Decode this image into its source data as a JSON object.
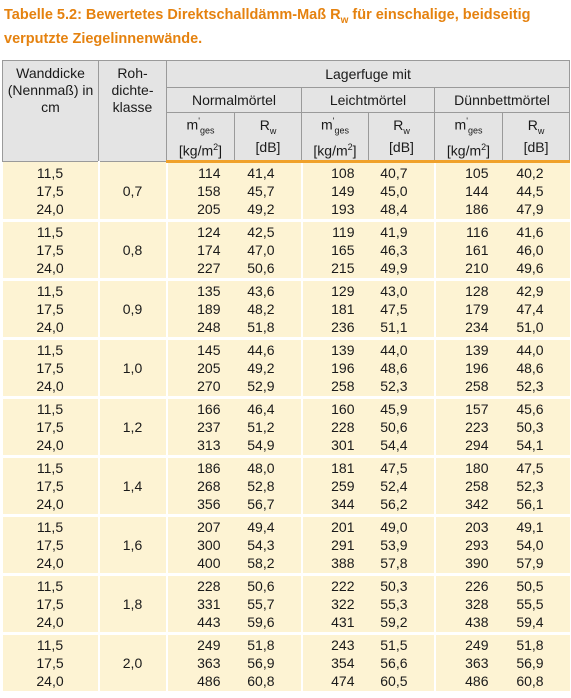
{
  "title": {
    "prefix": "Tabelle 5.2: Bewertetes Direktschalldämm-Maß R",
    "sub": "w",
    "suffix": "für einschalige, beidseitig verputzte Ziegelinnenwände."
  },
  "table": {
    "header": {
      "thickness": "Wanddicke (Nennmaß) in cm",
      "class": "Roh-dichte-klasse",
      "group": "Lagerfuge mit",
      "mortars": [
        "Normalmörtel",
        "Leichtmörtel",
        "Dünnbettmörtel"
      ],
      "m_label": {
        "base": "m",
        "sup": "'",
        "sub": "ges"
      },
      "m_unit": {
        "base": "[kg/m",
        "sup": "2",
        "close": "]"
      },
      "rw_label": {
        "base": "R",
        "sub": "w"
      },
      "rw_unit": "[dB]"
    },
    "rows": [
      {
        "thickness": [
          "11,5",
          "17,5",
          "24,0"
        ],
        "class": "0,7",
        "values": [
          [
            "114",
            "41,4",
            "108",
            "40,7",
            "105",
            "40,2"
          ],
          [
            "158",
            "45,7",
            "149",
            "45,0",
            "144",
            "44,5"
          ],
          [
            "205",
            "49,2",
            "193",
            "48,4",
            "186",
            "47,9"
          ]
        ]
      },
      {
        "thickness": [
          "11,5",
          "17,5",
          "24,0"
        ],
        "class": "0,8",
        "values": [
          [
            "124",
            "42,5",
            "119",
            "41,9",
            "116",
            "41,6"
          ],
          [
            "174",
            "47,0",
            "165",
            "46,3",
            "161",
            "46,0"
          ],
          [
            "227",
            "50,6",
            "215",
            "49,9",
            "210",
            "49,6"
          ]
        ]
      },
      {
        "thickness": [
          "11,5",
          "17,5",
          "24,0"
        ],
        "class": "0,9",
        "values": [
          [
            "135",
            "43,6",
            "129",
            "43,0",
            "128",
            "42,9"
          ],
          [
            "189",
            "48,2",
            "181",
            "47,5",
            "179",
            "47,4"
          ],
          [
            "248",
            "51,8",
            "236",
            "51,1",
            "234",
            "51,0"
          ]
        ]
      },
      {
        "thickness": [
          "11,5",
          "17,5",
          "24,0"
        ],
        "class": "1,0",
        "values": [
          [
            "145",
            "44,6",
            "139",
            "44,0",
            "139",
            "44,0"
          ],
          [
            "205",
            "49,2",
            "196",
            "48,6",
            "196",
            "48,6"
          ],
          [
            "270",
            "52,9",
            "258",
            "52,3",
            "258",
            "52,3"
          ]
        ]
      },
      {
        "thickness": [
          "11,5",
          "17,5",
          "24,0"
        ],
        "class": "1,2",
        "values": [
          [
            "166",
            "46,4",
            "160",
            "45,9",
            "157",
            "45,6"
          ],
          [
            "237",
            "51,2",
            "228",
            "50,6",
            "223",
            "50,3"
          ],
          [
            "313",
            "54,9",
            "301",
            "54,4",
            "294",
            "54,1"
          ]
        ]
      },
      {
        "thickness": [
          "11,5",
          "17,5",
          "24,0"
        ],
        "class": "1,4",
        "values": [
          [
            "186",
            "48,0",
            "181",
            "47,5",
            "180",
            "47,5"
          ],
          [
            "268",
            "52,8",
            "259",
            "52,4",
            "258",
            "52,3"
          ],
          [
            "356",
            "56,7",
            "344",
            "56,2",
            "342",
            "56,1"
          ]
        ]
      },
      {
        "thickness": [
          "11,5",
          "17,5",
          "24,0"
        ],
        "class": "1,6",
        "values": [
          [
            "207",
            "49,4",
            "201",
            "49,0",
            "203",
            "49,1"
          ],
          [
            "300",
            "54,3",
            "291",
            "53,9",
            "293",
            "54,0"
          ],
          [
            "400",
            "58,2",
            "388",
            "57,8",
            "390",
            "57,9"
          ]
        ]
      },
      {
        "thickness": [
          "11,5",
          "17,5",
          "24,0"
        ],
        "class": "1,8",
        "values": [
          [
            "228",
            "50,6",
            "222",
            "50,3",
            "226",
            "50,5"
          ],
          [
            "331",
            "55,7",
            "322",
            "55,3",
            "328",
            "55,5"
          ],
          [
            "443",
            "59,6",
            "431",
            "59,2",
            "438",
            "59,4"
          ]
        ]
      },
      {
        "thickness": [
          "11,5",
          "17,5",
          "24,0"
        ],
        "class": "2,0",
        "values": [
          [
            "249",
            "51,8",
            "243",
            "51,5",
            "249",
            "51,8"
          ],
          [
            "363",
            "56,9",
            "354",
            "56,6",
            "363",
            "56,9"
          ],
          [
            "486",
            "60,8",
            "474",
            "60,5",
            "486",
            "60,8"
          ]
        ]
      }
    ]
  }
}
